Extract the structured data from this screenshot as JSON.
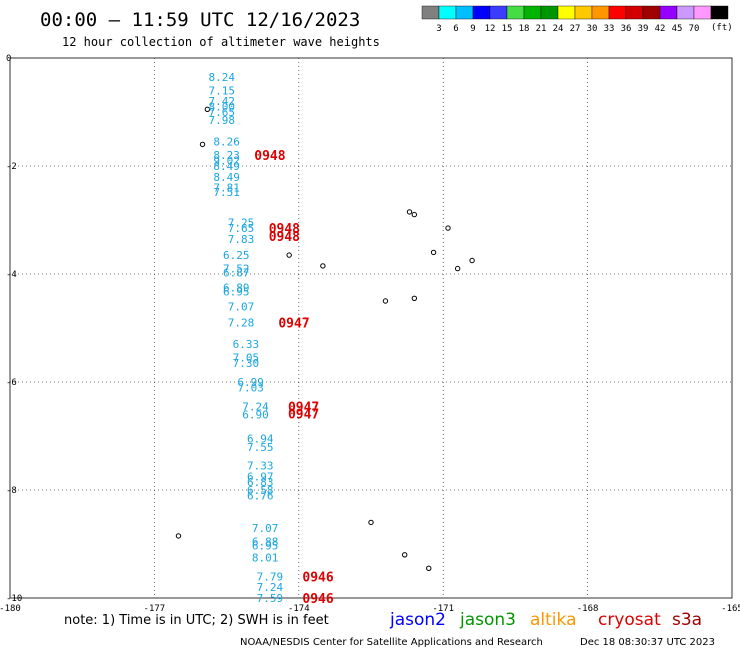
{
  "header": {
    "title": "00:00 – 11:59 UTC 12/16/2023",
    "subtitle": "12 hour collection of altimeter wave heights"
  },
  "scale": {
    "colors": [
      "#808080",
      "#00ffff",
      "#00bfff",
      "#0000ff",
      "#3c3cff",
      "#44dd44",
      "#00b400",
      "#009600",
      "#ffff00",
      "#ffc800",
      "#ff9600",
      "#ff0000",
      "#d20000",
      "#a00000",
      "#9600ff",
      "#cc99ff",
      "#ff99ff",
      "#000000"
    ],
    "labels": [
      "3",
      "6",
      "9",
      "12",
      "15",
      "18",
      "21",
      "24",
      "27",
      "30",
      "33",
      "36",
      "39",
      "42",
      "45",
      "70"
    ],
    "unit": "(ft)"
  },
  "footer": {
    "note": "note: 1) Time is in UTC; 2) SWH is in feet",
    "credit": "NOAA/NESDIS Center for Satellite Applications and Research",
    "timestamp": "Dec 18 08:30:37 UTC 2023",
    "satellites": [
      {
        "name": "jason2",
        "color": "#0000ff"
      },
      {
        "name": "jason3",
        "color": "#009600"
      },
      {
        "name": "altika",
        "color": "#ff9600"
      },
      {
        "name": "cryosat",
        "color": "#dd0000"
      },
      {
        "name": "s3a",
        "color": "#a00000"
      }
    ]
  },
  "chart_data": {
    "type": "scatter",
    "title": "00:00 – 11:59 UTC 12/16/2023",
    "subtitle": "12 hour collection of altimeter wave heights",
    "xlim": [
      -180,
      -165
    ],
    "ylim": [
      -10,
      0
    ],
    "xticks": [
      "-180",
      "-177",
      "-174",
      "-171",
      "-168",
      "-165"
    ],
    "yticks": [
      "0",
      "-2",
      "-4",
      "-6",
      "-8",
      "-10"
    ],
    "grid": true,
    "swh_color": "#1aa6e0",
    "time_color": "#dd0000",
    "swh_points": [
      {
        "lon": -175.6,
        "lat": -0.35,
        "value": "8.24"
      },
      {
        "lon": -175.6,
        "lat": -0.6,
        "value": "7.15"
      },
      {
        "lon": -175.6,
        "lat": -0.8,
        "value": "7.42"
      },
      {
        "lon": -175.6,
        "lat": -0.9,
        "value": "8.00"
      },
      {
        "lon": -175.6,
        "lat": -1.0,
        "value": "7.65"
      },
      {
        "lon": -175.6,
        "lat": -1.15,
        "value": "7.98"
      },
      {
        "lon": -175.5,
        "lat": -1.55,
        "value": "8.26"
      },
      {
        "lon": -175.5,
        "lat": -1.8,
        "value": "8.23"
      },
      {
        "lon": -175.5,
        "lat": -1.9,
        "value": "9.02"
      },
      {
        "lon": -175.5,
        "lat": -2.0,
        "value": "8.49"
      },
      {
        "lon": -175.5,
        "lat": -2.2,
        "value": "8.49"
      },
      {
        "lon": -175.5,
        "lat": -2.4,
        "value": "7.81"
      },
      {
        "lon": -175.5,
        "lat": -2.48,
        "value": "7.51"
      },
      {
        "lon": -175.2,
        "lat": -3.05,
        "value": "7.25"
      },
      {
        "lon": -175.2,
        "lat": -3.15,
        "value": "7.65"
      },
      {
        "lon": -175.2,
        "lat": -3.35,
        "value": "7.83"
      },
      {
        "lon": -175.3,
        "lat": -3.65,
        "value": "6.25"
      },
      {
        "lon": -175.3,
        "lat": -3.9,
        "value": "7.52"
      },
      {
        "lon": -175.3,
        "lat": -3.97,
        "value": "6.87"
      },
      {
        "lon": -175.3,
        "lat": -4.25,
        "value": "6.89"
      },
      {
        "lon": -175.3,
        "lat": -4.32,
        "value": "6.95"
      },
      {
        "lon": -175.2,
        "lat": -4.6,
        "value": "7.07"
      },
      {
        "lon": -175.2,
        "lat": -4.9,
        "value": "7.28"
      },
      {
        "lon": -175.1,
        "lat": -5.3,
        "value": "6.33"
      },
      {
        "lon": -175.1,
        "lat": -5.55,
        "value": "7.05"
      },
      {
        "lon": -175.1,
        "lat": -5.65,
        "value": "7.30"
      },
      {
        "lon": -175.0,
        "lat": -6.0,
        "value": "6.99"
      },
      {
        "lon": -175.0,
        "lat": -6.1,
        "value": "7.03"
      },
      {
        "lon": -174.9,
        "lat": -6.45,
        "value": "7.24"
      },
      {
        "lon": -174.9,
        "lat": -6.6,
        "value": "6.90"
      },
      {
        "lon": -174.8,
        "lat": -7.05,
        "value": "6.94"
      },
      {
        "lon": -174.8,
        "lat": -7.2,
        "value": "7.55"
      },
      {
        "lon": -174.8,
        "lat": -7.55,
        "value": "7.33"
      },
      {
        "lon": -174.8,
        "lat": -7.75,
        "value": "6.97"
      },
      {
        "lon": -174.8,
        "lat": -7.85,
        "value": "6.83"
      },
      {
        "lon": -174.8,
        "lat": -8.0,
        "value": "6.58"
      },
      {
        "lon": -174.8,
        "lat": -8.1,
        "value": "6.76"
      },
      {
        "lon": -174.7,
        "lat": -8.7,
        "value": "7.07"
      },
      {
        "lon": -174.7,
        "lat": -8.95,
        "value": "6.88"
      },
      {
        "lon": -174.7,
        "lat": -9.03,
        "value": "6.95"
      },
      {
        "lon": -174.7,
        "lat": -9.25,
        "value": "8.01"
      },
      {
        "lon": -174.6,
        "lat": -9.6,
        "value": "7.79"
      },
      {
        "lon": -174.6,
        "lat": -9.8,
        "value": "7.24"
      },
      {
        "lon": -174.6,
        "lat": -10.0,
        "value": "7.59"
      }
    ],
    "time_labels": [
      {
        "lon": -174.6,
        "lat": -1.8,
        "value": "0948"
      },
      {
        "lon": -174.3,
        "lat": -3.15,
        "value": "0948"
      },
      {
        "lon": -174.3,
        "lat": -3.3,
        "value": "0948"
      },
      {
        "lon": -174.1,
        "lat": -4.9,
        "value": "0947"
      },
      {
        "lon": -173.9,
        "lat": -6.45,
        "value": "0947"
      },
      {
        "lon": -173.9,
        "lat": -6.58,
        "value": "0947"
      },
      {
        "lon": -173.6,
        "lat": -9.6,
        "value": "0946"
      },
      {
        "lon": -173.6,
        "lat": -10.0,
        "value": "0946"
      }
    ],
    "islands": [
      {
        "lon": -175.9,
        "lat": -0.95
      },
      {
        "lon": -176.0,
        "lat": -1.6
      },
      {
        "lon": -174.2,
        "lat": -3.65
      },
      {
        "lon": -173.5,
        "lat": -3.85
      },
      {
        "lon": -171.7,
        "lat": -2.85
      },
      {
        "lon": -171.6,
        "lat": -2.9
      },
      {
        "lon": -171.2,
        "lat": -3.6
      },
      {
        "lon": -170.9,
        "lat": -3.15
      },
      {
        "lon": -170.4,
        "lat": -3.75
      },
      {
        "lon": -170.7,
        "lat": -3.9
      },
      {
        "lon": -172.2,
        "lat": -4.5
      },
      {
        "lon": -171.6,
        "lat": -4.45
      },
      {
        "lon": -176.5,
        "lat": -8.85
      },
      {
        "lon": -172.5,
        "lat": -8.6
      },
      {
        "lon": -171.8,
        "lat": -9.2
      },
      {
        "lon": -171.3,
        "lat": -9.45
      }
    ]
  }
}
